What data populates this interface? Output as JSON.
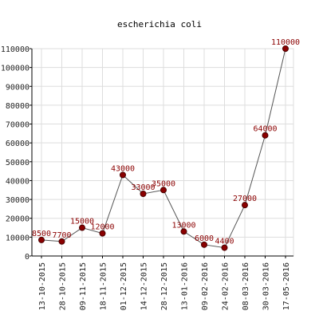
{
  "chart_data": {
    "type": "line",
    "title": "escherichia coli",
    "xlabel": "",
    "ylabel": "",
    "categories": [
      "13-10-2015",
      "28-10-2015",
      "09-11-2015",
      "18-11-2015",
      "01-12-2015",
      "14-12-2015",
      "28-12-2015",
      "13-01-2016",
      "09-02-2016",
      "24-02-2016",
      "08-03-2016",
      "30-03-2016",
      "17-05-2016"
    ],
    "series": [
      {
        "values": [
          8500,
          7700,
          15000,
          12000,
          43000,
          33000,
          35000,
          13000,
          6000,
          4400,
          27000,
          64000,
          110000
        ]
      }
    ],
    "data_labels": [
      "8500",
      "7700",
      "15000",
      "12000",
      "43000",
      "33000",
      "35000",
      "13000",
      "6000",
      "4400",
      "27000",
      "64000",
      "110000"
    ],
    "ylim": [
      0,
      110000
    ],
    "yticks": [
      0,
      10000,
      20000,
      30000,
      40000,
      50000,
      60000,
      70000,
      80000,
      90000,
      100000,
      110000
    ],
    "grid": true,
    "legend": "none",
    "colors": {
      "line": "#555555",
      "marker": "#8b0000",
      "marker_stroke": "#4a0000",
      "data_label": "#8b0000",
      "grid": "#dddddd",
      "axis": "#000000",
      "text": "#222222"
    }
  }
}
